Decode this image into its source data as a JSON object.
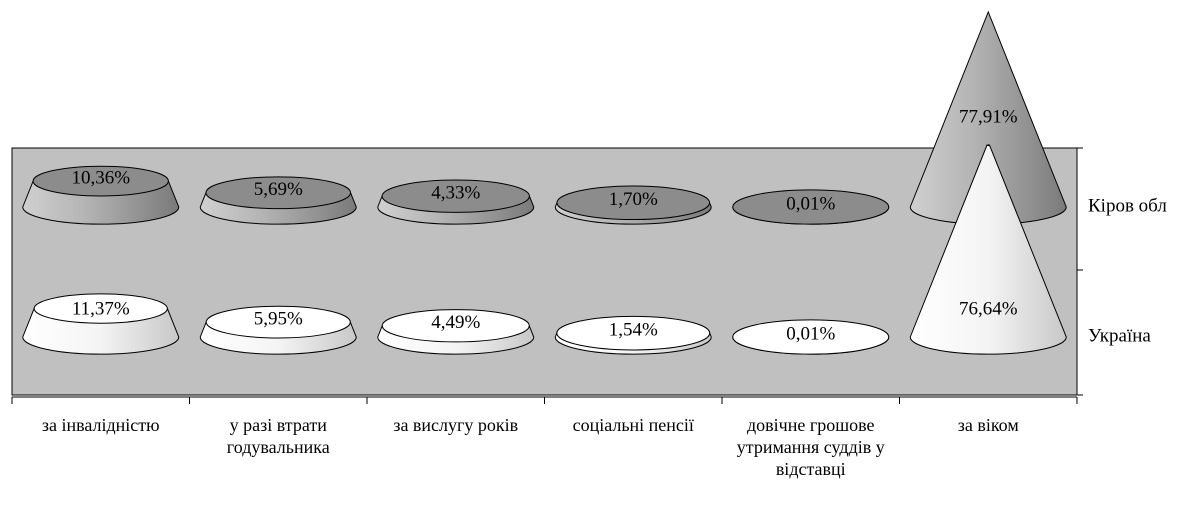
{
  "chart_data": {
    "type": "cone",
    "categories": [
      "за інвалідністю",
      "у разі втрати годувальника",
      "за вислугу років",
      "соціальні пенсії",
      "довічне грошове утримання суддів у відставці",
      "за віком"
    ],
    "series": [
      {
        "name": "Кіров обл",
        "color": "#9a9a9a",
        "values": [
          10.36,
          5.69,
          4.33,
          1.7,
          0.01,
          77.91
        ],
        "value_labels": [
          "10,36%",
          "5,69%",
          "4,33%",
          "1,70%",
          "0,01%",
          "77,91%"
        ]
      },
      {
        "name": "Україна",
        "color": "#ffffff",
        "values": [
          11.37,
          5.95,
          4.49,
          1.54,
          0.01,
          76.64
        ],
        "value_labels": [
          "11,37%",
          "5,95%",
          "4,49%",
          "1,54%",
          "0,01%",
          "76,64%"
        ]
      }
    ]
  }
}
